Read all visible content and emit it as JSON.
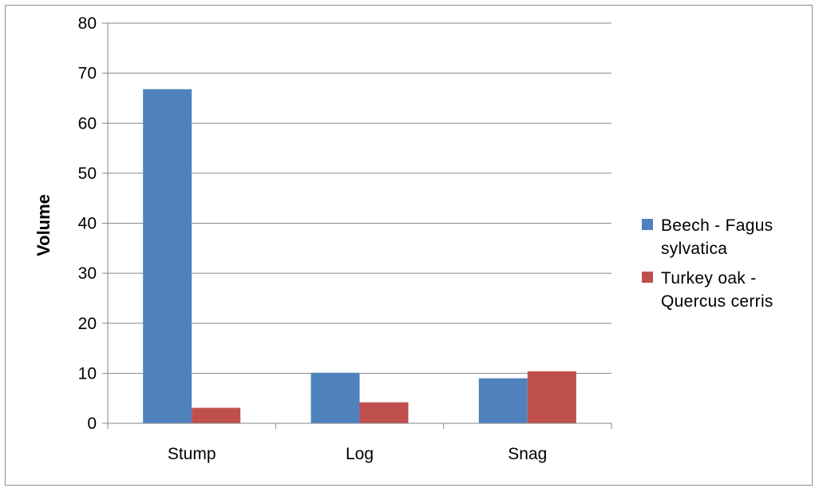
{
  "chart_data": {
    "type": "bar",
    "title": "",
    "xlabel": "",
    "ylabel": "Volume",
    "ylim": [
      0,
      80
    ],
    "yticks": [
      0,
      10,
      20,
      30,
      40,
      50,
      60,
      70,
      80
    ],
    "grid": true,
    "legend_position": "right",
    "categories": [
      "Stump",
      "Log",
      "Snag"
    ],
    "series": [
      {
        "name": "Beech - Fagus sylvatica",
        "color": "#4f81bd",
        "values": [
          66.8,
          10.1,
          9.0
        ]
      },
      {
        "name": "Turkey oak - Quercus cerris",
        "color": "#c0504d",
        "values": [
          3.1,
          4.2,
          10.4
        ]
      }
    ]
  }
}
